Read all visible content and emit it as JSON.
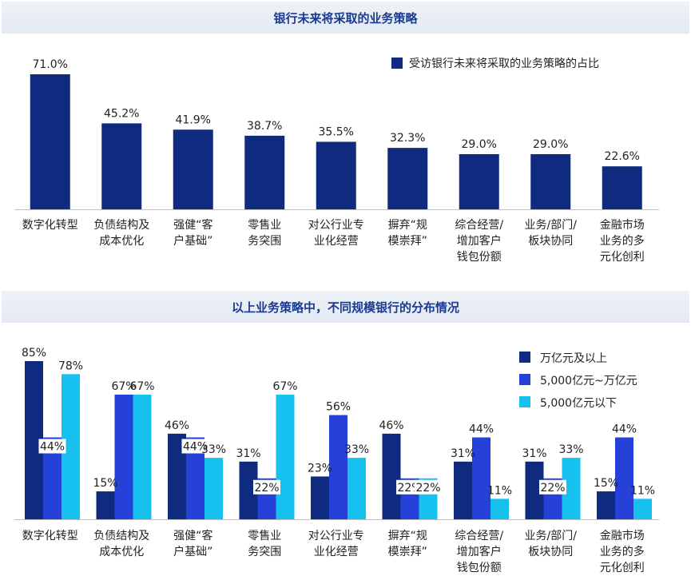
{
  "chart_data": [
    {
      "type": "bar",
      "title": "银行未来将采取的业务策略",
      "legend_position": "top-right",
      "categories": [
        [
          "数字化转型"
        ],
        [
          "负债结构及",
          "成本优化"
        ],
        [
          "强健“客",
          "户基础”"
        ],
        [
          "零售业",
          "务突围"
        ],
        [
          "对公行业专",
          "业化经营"
        ],
        [
          "摒弃“规",
          "模崇拜”"
        ],
        [
          "综合经营/",
          "增加客户",
          "钱包份额"
        ],
        [
          "业务/部门/",
          "板块协同"
        ],
        [
          "金融市场",
          "业务的多",
          "元化创利"
        ]
      ],
      "series": [
        {
          "name": "受访银行未来将采取的业务策略的占比",
          "color": "#0f2b80",
          "values": [
            71.0,
            45.2,
            41.9,
            38.7,
            35.5,
            32.3,
            29.0,
            29.0,
            22.6
          ],
          "labels": [
            "71.0%",
            "45.2%",
            "41.9%",
            "38.7%",
            "35.5%",
            "32.3%",
            "29.0%",
            "29.0%",
            "22.6%"
          ]
        }
      ],
      "ylim": [
        0,
        75
      ]
    },
    {
      "type": "bar",
      "title": "以上业务策略中，不同规模银行的分布情况",
      "legend_position": "top-right",
      "categories": [
        [
          "数字化转型"
        ],
        [
          "负债结构及",
          "成本优化"
        ],
        [
          "强健“客",
          "户基础”"
        ],
        [
          "零售业",
          "务突围"
        ],
        [
          "对公行业专",
          "业化经营"
        ],
        [
          "摒弃“规",
          "模崇拜”"
        ],
        [
          "综合经营/",
          "增加客户",
          "钱包份额"
        ],
        [
          "业务/部门/",
          "板块协同"
        ],
        [
          "金融市场",
          "业务的多",
          "元化创利"
        ]
      ],
      "series": [
        {
          "name": "万亿元及以上",
          "color": "#0f2b80",
          "values": [
            85,
            15,
            46,
            31,
            23,
            46,
            31,
            31,
            15
          ],
          "labels": [
            "85%",
            "15%",
            "46%",
            "31%",
            "23%",
            "46%",
            "31%",
            "31%",
            "15%"
          ]
        },
        {
          "name": "5,000亿元~万亿元",
          "color": "#2541d8",
          "values": [
            44,
            67,
            44,
            22,
            56,
            22,
            44,
            22,
            44
          ],
          "labels": [
            "44%",
            "67%",
            "44%",
            "22%",
            "56%",
            "22%",
            "44%",
            "22%",
            "44%"
          ]
        },
        {
          "name": "5,000亿元以下",
          "color": "#16c0ef",
          "values": [
            78,
            67,
            33,
            67,
            33,
            22,
            11,
            33,
            11
          ],
          "labels": [
            "78%",
            "67%",
            "33%",
            "67%",
            "33%",
            "22%",
            "11%",
            "33%",
            "11%"
          ]
        }
      ],
      "ylim": [
        0,
        90
      ]
    }
  ]
}
